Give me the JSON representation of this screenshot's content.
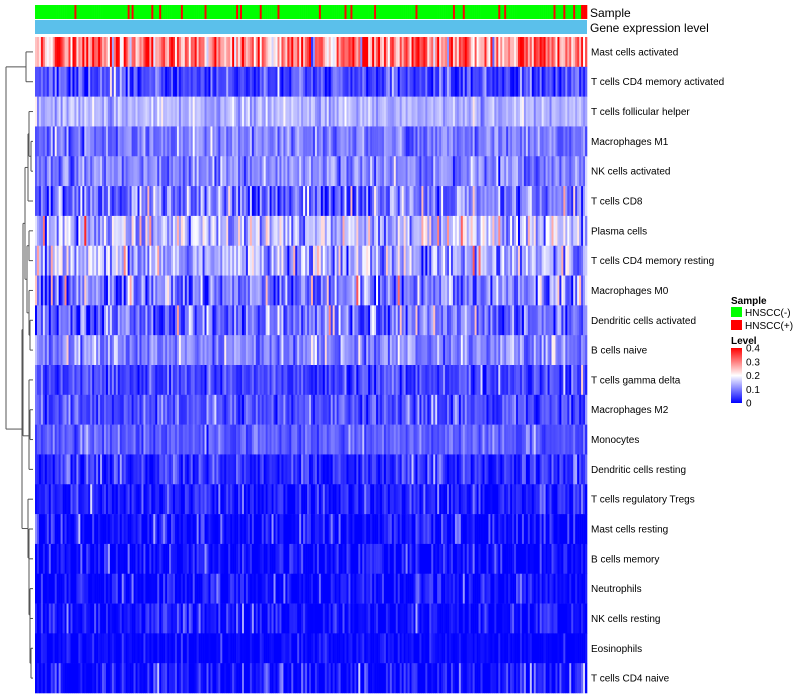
{
  "chart_data": {
    "type": "heatmap",
    "column_annotations": [
      {
        "name": "Sample",
        "kind": "categorical"
      },
      {
        "name": "Gene expression level",
        "kind": "constant",
        "color": "#5BC0EB"
      }
    ],
    "sample_groups": [
      {
        "label": "HNSCC(-)",
        "color": "#00FF00"
      },
      {
        "label": "HNSCC(+)",
        "color": "#FF0000"
      }
    ],
    "sample_columns": 280,
    "sample_positive_fraction": 0.12,
    "rows": [
      {
        "label": "Mast cells activated",
        "mean": 0.29,
        "spread": 0.12
      },
      {
        "label": "T cells CD4 memory activated",
        "mean": 0.05,
        "spread": 0.06
      },
      {
        "label": "T cells follicular helper",
        "mean": 0.14,
        "spread": 0.04
      },
      {
        "label": "Macrophages M1",
        "mean": 0.09,
        "spread": 0.05
      },
      {
        "label": "NK cells activated",
        "mean": 0.1,
        "spread": 0.05
      },
      {
        "label": "T cells CD8",
        "mean": 0.08,
        "spread": 0.08
      },
      {
        "label": "Plasma cells",
        "mean": 0.14,
        "spread": 0.1
      },
      {
        "label": "T cells CD4 memory resting",
        "mean": 0.13,
        "spread": 0.09
      },
      {
        "label": "Macrophages M0",
        "mean": 0.1,
        "spread": 0.1
      },
      {
        "label": "Dendritic cells activated",
        "mean": 0.08,
        "spread": 0.08
      },
      {
        "label": "B cells naive",
        "mean": 0.1,
        "spread": 0.05
      },
      {
        "label": "T cells gamma delta",
        "mean": 0.05,
        "spread": 0.05
      },
      {
        "label": "Macrophages M2",
        "mean": 0.06,
        "spread": 0.05
      },
      {
        "label": "Monocytes",
        "mean": 0.07,
        "spread": 0.04
      },
      {
        "label": "Dendritic cells resting",
        "mean": 0.03,
        "spread": 0.05
      },
      {
        "label": "T cells regulatory  Tregs",
        "mean": 0.02,
        "spread": 0.05
      },
      {
        "label": "Mast cells resting",
        "mean": 0.005,
        "spread": 0.06
      },
      {
        "label": "B cells memory",
        "mean": 0.006,
        "spread": 0.05
      },
      {
        "label": "Neutrophils",
        "mean": 0.004,
        "spread": 0.05
      },
      {
        "label": "NK cells resting",
        "mean": 0.005,
        "spread": 0.05
      },
      {
        "label": "Eosinophils",
        "mean": 0.002,
        "spread": 0.03
      },
      {
        "label": "T cells CD4 naive",
        "mean": 0.006,
        "spread": 0.06
      }
    ],
    "color_scale": {
      "title": "Level",
      "min": 0,
      "max": 0.4,
      "stops": [
        {
          "value": 0,
          "color": "#0000FF"
        },
        {
          "value": 0.2,
          "color": "#FFFFFF"
        },
        {
          "value": 0.4,
          "color": "#FF0000"
        }
      ],
      "ticks": [
        "0.4",
        "0.3",
        "0.2",
        "0.1",
        "0"
      ]
    },
    "legend": {
      "sample_title": "Sample",
      "placement": "right"
    },
    "row_dendrogram": true
  }
}
